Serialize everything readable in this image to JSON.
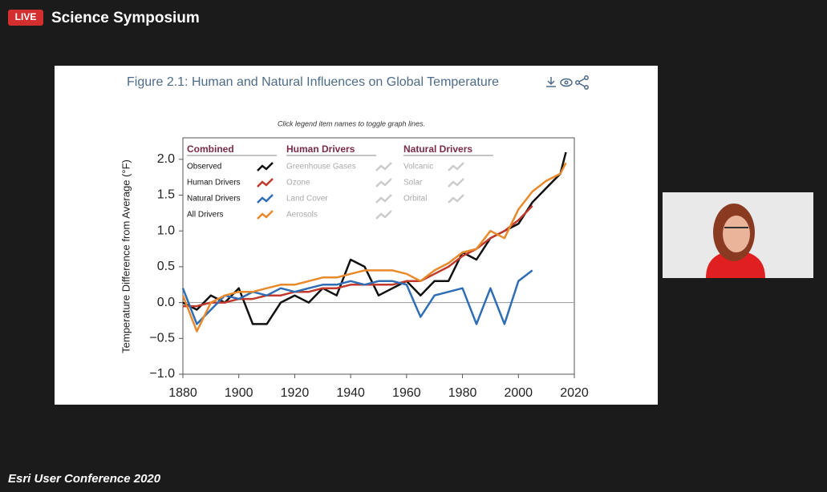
{
  "stream": {
    "badge": "LIVE",
    "title": "Science Symposium",
    "footer": "Esri User Conference 2020"
  },
  "chart_data": {
    "type": "line",
    "title": "Figure 2.1: Human and Natural Influences on Global Temperature",
    "subtitle": "Click legend item names to toggle graph lines.",
    "y_label": "Temperature Difference from Average (°F)",
    "x": [
      1880,
      1885,
      1890,
      1895,
      1900,
      1905,
      1910,
      1915,
      1920,
      1925,
      1930,
      1935,
      1940,
      1945,
      1950,
      1955,
      1960,
      1965,
      1970,
      1975,
      1980,
      1985,
      1990,
      1995,
      2000,
      2005,
      2010,
      2015,
      2017
    ],
    "series": [
      {
        "name": "Observed",
        "color": "#111111",
        "values": [
          0.0,
          -0.1,
          0.1,
          0.0,
          0.2,
          -0.3,
          -0.3,
          0.0,
          0.1,
          0.0,
          0.2,
          0.1,
          0.6,
          0.5,
          0.1,
          0.2,
          0.3,
          0.1,
          0.3,
          0.3,
          0.7,
          0.6,
          0.9,
          1.0,
          1.1,
          1.4,
          1.6,
          1.8,
          2.1
        ]
      },
      {
        "name": "Human Drivers",
        "color": "#c0392b",
        "values": [
          -0.05,
          -0.05,
          0.0,
          0.0,
          0.05,
          0.05,
          0.1,
          0.1,
          0.15,
          0.15,
          0.2,
          0.2,
          0.25,
          0.25,
          0.25,
          0.25,
          0.3,
          0.3,
          0.4,
          0.5,
          0.65,
          0.75,
          0.9,
          1.0,
          1.15,
          1.35,
          null,
          null,
          null
        ]
      },
      {
        "name": "Natural Drivers",
        "color": "#2f6db5",
        "values": [
          0.2,
          -0.3,
          -0.1,
          0.1,
          0.05,
          0.15,
          0.1,
          0.2,
          0.15,
          0.2,
          0.25,
          0.25,
          0.3,
          0.25,
          0.3,
          0.3,
          0.25,
          -0.2,
          0.1,
          0.15,
          0.2,
          -0.3,
          0.2,
          -0.3,
          0.3,
          0.45,
          null,
          null,
          null
        ]
      },
      {
        "name": "All Drivers",
        "color": "#e8892b",
        "values": [
          0.1,
          -0.4,
          0.0,
          0.1,
          0.15,
          0.15,
          0.2,
          0.25,
          0.25,
          0.3,
          0.35,
          0.35,
          0.4,
          0.45,
          0.45,
          0.45,
          0.4,
          0.3,
          0.45,
          0.55,
          0.7,
          0.75,
          1.0,
          0.9,
          1.3,
          1.55,
          1.7,
          1.8,
          1.95
        ]
      }
    ],
    "legend_groups": [
      {
        "title": "Combined"
      },
      {
        "title": "Human Drivers",
        "items": [
          "Greenhouse Gases",
          "Ozone",
          "Land Cover",
          "Aerosols"
        ]
      },
      {
        "title": "Natural Drivers",
        "items": [
          "Volcanic",
          "Solar",
          "Orbital"
        ]
      }
    ],
    "xlim": [
      1880,
      2020
    ],
    "xticks": [
      1880,
      1900,
      1920,
      1940,
      1960,
      1980,
      2000,
      2020
    ],
    "ylim": [
      -1.0,
      2.3
    ],
    "yticks": [
      {
        "value": -1.0,
        "label": "−1.0"
      },
      {
        "value": -0.5,
        "label": "−0.5"
      },
      {
        "value": 0,
        "label": "0.0"
      },
      {
        "value": 0.5,
        "label": "0.5"
      },
      {
        "value": 1.0,
        "label": "1.0"
      },
      {
        "value": 1.5,
        "label": "1.5"
      },
      {
        "value": 2.0,
        "label": "2.0"
      }
    ],
    "grid": false
  }
}
